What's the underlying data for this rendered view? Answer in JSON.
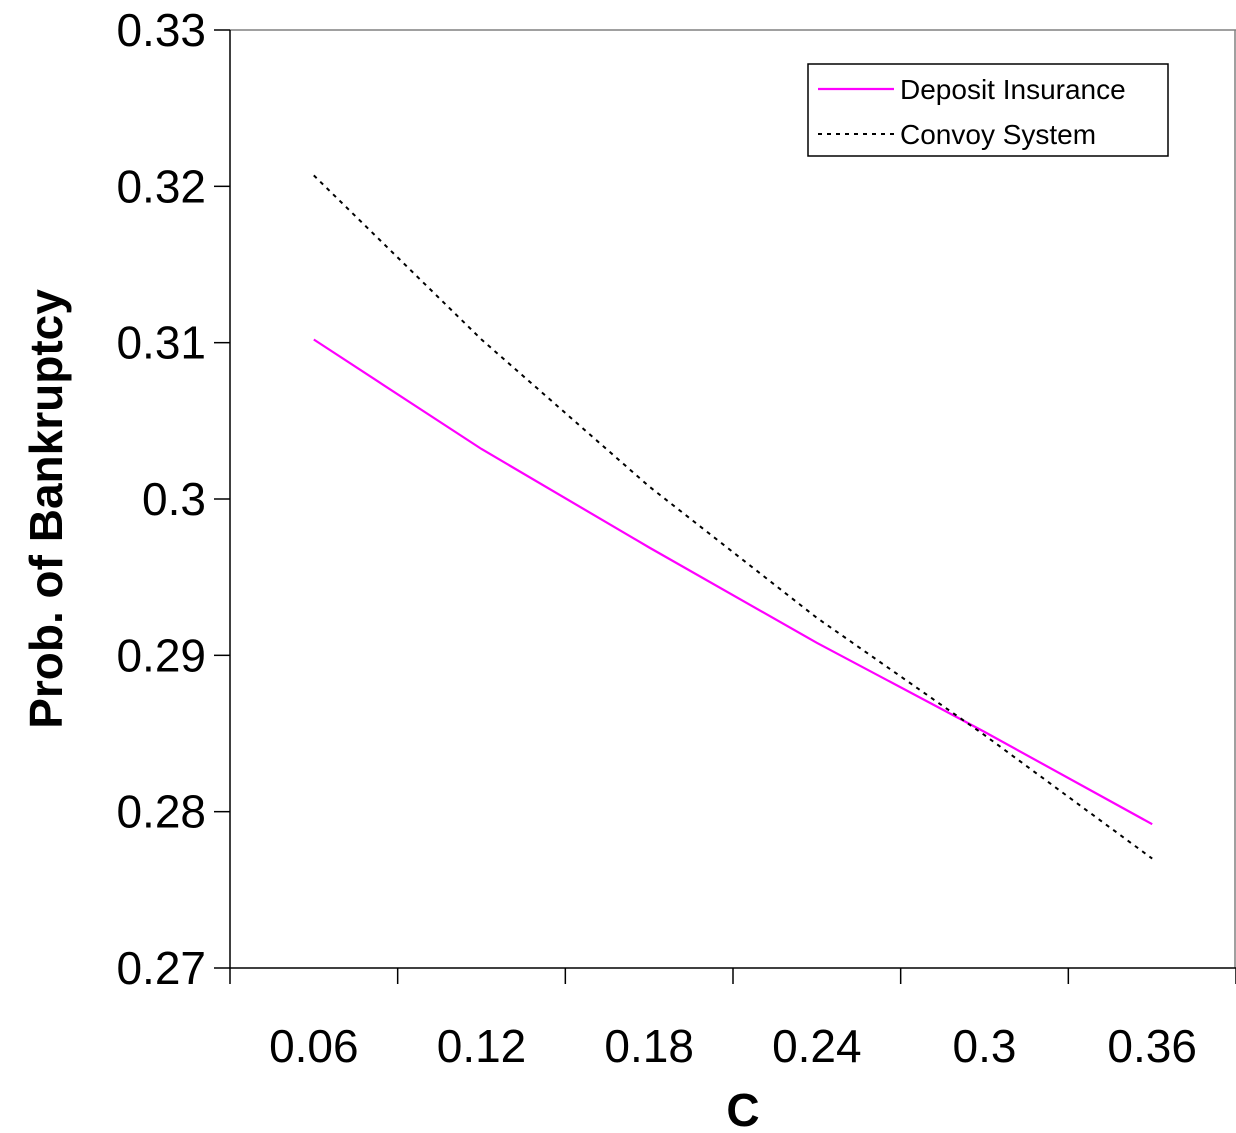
{
  "chart_data": {
    "type": "line",
    "title": "",
    "xlabel": "C",
    "ylabel": "Prob. of Bankruptcy",
    "x_ticks": [
      "0.06",
      "0.12",
      "0.18",
      "0.24",
      "0.3",
      "0.36"
    ],
    "y_ticks": [
      "0.33",
      "0.32",
      "0.31",
      "0.3",
      "0.29",
      "0.28",
      "0.27"
    ],
    "xlim": [
      0.03,
      0.39
    ],
    "ylim": [
      0.27,
      0.33
    ],
    "grid": false,
    "legend_position": "top-right",
    "series": [
      {
        "name": "Deposit Insurance",
        "color": "#ff00ff",
        "style": "solid",
        "x": [
          0.06,
          0.12,
          0.18,
          0.24,
          0.3,
          0.36
        ],
        "y": [
          0.3102,
          0.3032,
          0.2969,
          0.2908,
          0.2851,
          0.2792
        ]
      },
      {
        "name": "Convoy System",
        "color": "#000000",
        "style": "dotted",
        "x": [
          0.06,
          0.12,
          0.18,
          0.24,
          0.3,
          0.36
        ],
        "y": [
          0.3207,
          0.3102,
          0.3008,
          0.2924,
          0.2849,
          0.277
        ]
      }
    ]
  }
}
